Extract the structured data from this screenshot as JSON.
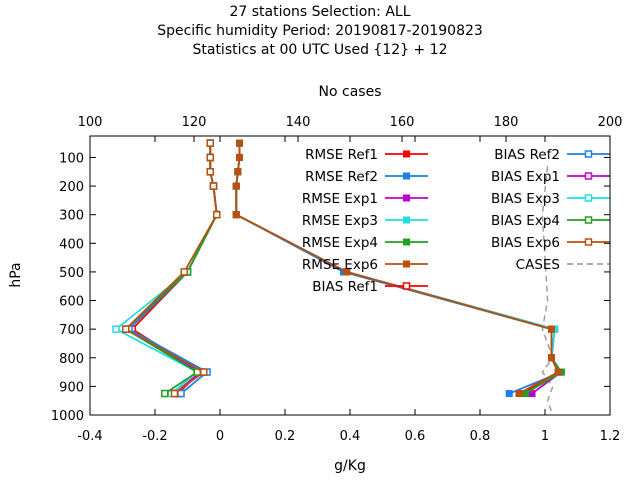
{
  "chart_data": {
    "type": "line",
    "title_lines": [
      "27 stations Selection: ALL",
      "Specific humidity  Period: 20190817-20190823",
      "Statistics at 00 UTC  Used {12} + 12"
    ],
    "xlabel": "g/Kg",
    "ylabel": "hPa",
    "x2label": "No cases",
    "xlim": [
      -0.4,
      1.2
    ],
    "x2lim": [
      100,
      200
    ],
    "ylim": [
      1000,
      25
    ],
    "y_inverted": true,
    "x_ticks": [
      "-0.4",
      "-0.2",
      "0",
      "0.2",
      "0.4",
      "0.6",
      "0.8",
      "1",
      "1.2"
    ],
    "x2_ticks": [
      "100",
      "120",
      "140",
      "160",
      "180",
      "200"
    ],
    "y_ticks": [
      "100",
      "200",
      "300",
      "400",
      "500",
      "600",
      "700",
      "800",
      "900",
      "1000"
    ],
    "legend_position": "top-right",
    "series": [
      {
        "name": "RMSE Ref1",
        "color": "#ff0000",
        "marker": "filled-square",
        "points": [
          [
            0.06,
            50
          ],
          [
            0.06,
            100
          ],
          [
            0.055,
            150
          ],
          [
            0.05,
            200
          ],
          [
            0.05,
            300
          ],
          [
            0.385,
            500
          ],
          [
            1.02,
            700
          ],
          [
            1.02,
            800
          ],
          [
            1.04,
            850
          ],
          [
            0.93,
            925
          ]
        ]
      },
      {
        "name": "RMSE Ref2",
        "color": "#1e7fe6",
        "marker": "filled-square",
        "points": [
          [
            0.06,
            50
          ],
          [
            0.06,
            100
          ],
          [
            0.055,
            150
          ],
          [
            0.05,
            200
          ],
          [
            0.05,
            300
          ],
          [
            0.38,
            500
          ],
          [
            1.02,
            700
          ],
          [
            1.02,
            800
          ],
          [
            1.05,
            850
          ],
          [
            0.89,
            925
          ]
        ]
      },
      {
        "name": "RMSE Exp1",
        "color": "#c000d0",
        "marker": "filled-square",
        "points": [
          [
            0.06,
            50
          ],
          [
            0.06,
            100
          ],
          [
            0.055,
            150
          ],
          [
            0.05,
            200
          ],
          [
            0.05,
            300
          ],
          [
            0.39,
            500
          ],
          [
            1.03,
            700
          ],
          [
            1.02,
            800
          ],
          [
            1.05,
            850
          ],
          [
            0.96,
            925
          ]
        ]
      },
      {
        "name": "RMSE Exp3",
        "color": "#1ee0e0",
        "marker": "filled-square",
        "points": [
          [
            0.06,
            50
          ],
          [
            0.06,
            100
          ],
          [
            0.055,
            150
          ],
          [
            0.05,
            200
          ],
          [
            0.05,
            300
          ],
          [
            0.39,
            500
          ],
          [
            1.03,
            700
          ],
          [
            1.02,
            800
          ],
          [
            1.05,
            850
          ],
          [
            0.94,
            925
          ]
        ]
      },
      {
        "name": "RMSE Exp4",
        "color": "#20a020",
        "marker": "filled-square",
        "points": [
          [
            0.06,
            50
          ],
          [
            0.06,
            100
          ],
          [
            0.055,
            150
          ],
          [
            0.05,
            200
          ],
          [
            0.05,
            300
          ],
          [
            0.39,
            500
          ],
          [
            1.02,
            700
          ],
          [
            1.02,
            800
          ],
          [
            1.05,
            850
          ],
          [
            0.94,
            925
          ]
        ]
      },
      {
        "name": "RMSE Exp6",
        "color": "#b85010",
        "marker": "filled-square",
        "points": [
          [
            0.06,
            50
          ],
          [
            0.06,
            100
          ],
          [
            0.055,
            150
          ],
          [
            0.05,
            200
          ],
          [
            0.05,
            300
          ],
          [
            0.39,
            500
          ],
          [
            1.02,
            700
          ],
          [
            1.02,
            800
          ],
          [
            1.04,
            850
          ],
          [
            0.92,
            925
          ]
        ]
      },
      {
        "name": "BIAS Ref1",
        "color": "#ff0000",
        "marker": "open-square",
        "points": [
          [
            -0.03,
            50
          ],
          [
            -0.03,
            100
          ],
          [
            -0.03,
            150
          ],
          [
            -0.02,
            200
          ],
          [
            -0.01,
            300
          ],
          [
            -0.1,
            500
          ],
          [
            -0.27,
            700
          ],
          [
            -0.06,
            850
          ],
          [
            -0.13,
            925
          ]
        ]
      },
      {
        "name": "BIAS Ref2",
        "color": "#1e7fe6",
        "marker": "open-square",
        "points": [
          [
            -0.03,
            50
          ],
          [
            -0.03,
            100
          ],
          [
            -0.03,
            150
          ],
          [
            -0.02,
            200
          ],
          [
            -0.01,
            300
          ],
          [
            -0.1,
            500
          ],
          [
            -0.28,
            700
          ],
          [
            -0.04,
            850
          ],
          [
            -0.12,
            925
          ]
        ]
      },
      {
        "name": "BIAS Exp1",
        "color": "#c000d0",
        "marker": "open-square",
        "points": [
          [
            -0.03,
            50
          ],
          [
            -0.03,
            100
          ],
          [
            -0.03,
            150
          ],
          [
            -0.02,
            200
          ],
          [
            -0.01,
            300
          ],
          [
            -0.1,
            500
          ],
          [
            -0.29,
            700
          ],
          [
            -0.06,
            850
          ],
          [
            -0.14,
            925
          ]
        ]
      },
      {
        "name": "BIAS Exp3",
        "color": "#1ee0e0",
        "marker": "open-square",
        "points": [
          [
            -0.03,
            50
          ],
          [
            -0.03,
            100
          ],
          [
            -0.03,
            150
          ],
          [
            -0.02,
            200
          ],
          [
            -0.01,
            300
          ],
          [
            -0.1,
            500
          ],
          [
            -0.32,
            700
          ],
          [
            -0.07,
            850
          ],
          [
            -0.15,
            925
          ]
        ]
      },
      {
        "name": "BIAS Exp4",
        "color": "#20a020",
        "marker": "open-square",
        "points": [
          [
            -0.03,
            50
          ],
          [
            -0.03,
            100
          ],
          [
            -0.03,
            150
          ],
          [
            -0.02,
            200
          ],
          [
            -0.01,
            300
          ],
          [
            -0.1,
            500
          ],
          [
            -0.29,
            700
          ],
          [
            -0.07,
            850
          ],
          [
            -0.17,
            925
          ]
        ]
      },
      {
        "name": "BIAS Exp6",
        "color": "#b85010",
        "marker": "open-square",
        "points": [
          [
            -0.03,
            50
          ],
          [
            -0.03,
            100
          ],
          [
            -0.03,
            150
          ],
          [
            -0.02,
            200
          ],
          [
            -0.01,
            300
          ],
          [
            -0.11,
            500
          ],
          [
            -0.29,
            700
          ],
          [
            -0.05,
            850
          ],
          [
            -0.14,
            925
          ]
        ]
      },
      {
        "name": "CASES",
        "color": "#a0a0a0",
        "marker": "none",
        "dashed": true,
        "axis": "x2",
        "points": [
          [
            188,
            130
          ],
          [
            187,
            300
          ],
          [
            188,
            600
          ],
          [
            187,
            700
          ],
          [
            189,
            800
          ],
          [
            187,
            850
          ],
          [
            189,
            900
          ],
          [
            188,
            950
          ],
          [
            189,
            1000
          ]
        ]
      }
    ]
  }
}
